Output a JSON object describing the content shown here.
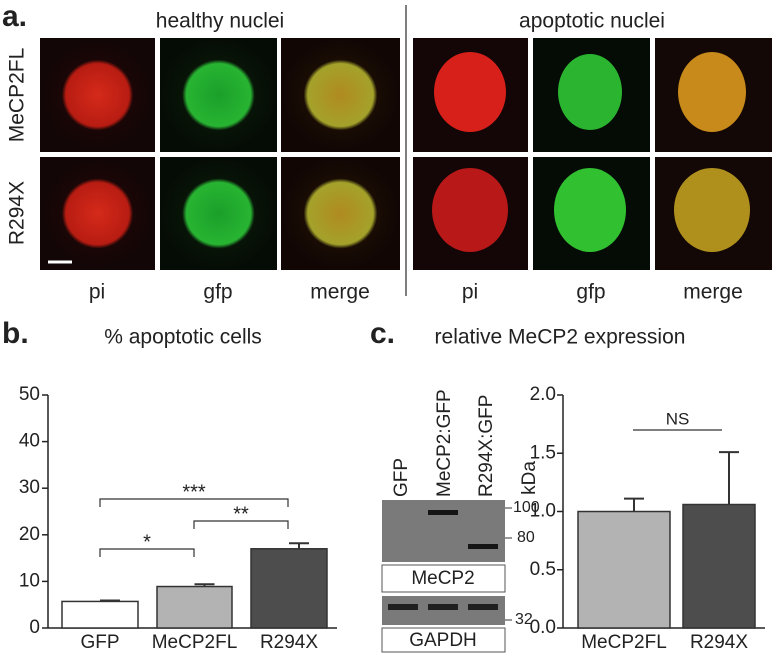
{
  "panel_labels": [
    "a.",
    "b.",
    "c."
  ],
  "microscopy": {
    "groups": [
      "healthy nuclei",
      "apoptotic nuclei"
    ],
    "rows": [
      "MeCP2FL",
      "R294X"
    ],
    "columns": [
      "pi",
      "gfp",
      "merge"
    ]
  },
  "blot": {
    "lanes": [
      "GFP",
      "MeCP2:GFP",
      "R294X:GFP"
    ],
    "unit": "kDa",
    "markers": [
      "100",
      "80",
      "32"
    ],
    "bands": [
      "MeCP2",
      "GAPDH"
    ]
  },
  "chart_data": [
    {
      "type": "bar",
      "title": "% apoptotic cells",
      "categories": [
        "GFP",
        "MeCP2FL",
        "R294X"
      ],
      "values": [
        5.7,
        8.9,
        17.0
      ],
      "errors": [
        0.2,
        0.5,
        1.2
      ],
      "colors": [
        "#ffffff",
        "#b3b3b3",
        "#4d4d4d"
      ],
      "ylim": [
        0,
        50
      ],
      "yticks": [
        0,
        10,
        20,
        30,
        40,
        50
      ],
      "annotations": [
        "*",
        "**",
        "***"
      ]
    },
    {
      "type": "bar",
      "title": "relative MeCP2 expression",
      "categories": [
        "MeCP2FL",
        "R294X"
      ],
      "values": [
        1.0,
        1.06
      ],
      "errors": [
        0.11,
        0.45
      ],
      "colors": [
        "#b3b3b3",
        "#4d4d4d"
      ],
      "ylim": [
        0,
        2
      ],
      "yticks": [
        {
          "value": 0,
          "label": "0.0"
        },
        {
          "value": 0.5,
          "label": "0.5"
        },
        {
          "value": 1,
          "label": "1.0"
        },
        {
          "value": 1.5,
          "label": "1.5"
        },
        {
          "value": 2,
          "label": "2.0"
        }
      ],
      "annotations": [
        "NS"
      ]
    }
  ]
}
